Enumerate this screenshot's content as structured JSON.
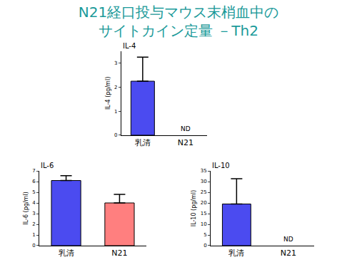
{
  "title": [
    "N21経口投与マウス末梢血中の",
    "サイトカイン定量 －Th2"
  ],
  "chart_data": [
    {
      "type": "bar",
      "title": "IL-4",
      "y_label": "IL-4 (pg/ml)",
      "categories": [
        "乳清",
        "N21"
      ],
      "values": [
        2.25,
        null
      ],
      "errors": [
        1.0,
        null
      ],
      "colors": [
        "#4b4bf0",
        "#ff7f7f"
      ],
      "annotations": [
        {
          "category": "N21",
          "text": "ND"
        }
      ],
      "ylim": [
        0,
        3.5
      ],
      "yticks": [
        0,
        1,
        2,
        3
      ],
      "grid": false
    },
    {
      "type": "bar",
      "title": "IL-6",
      "y_label": "IL-6 (pg/ml)",
      "categories": [
        "乳清",
        "N21"
      ],
      "values": [
        6.1,
        4.0
      ],
      "errors": [
        0.45,
        0.8
      ],
      "colors": [
        "#4b4bf0",
        "#ff7f7f"
      ],
      "ylim": [
        0,
        7
      ],
      "yticks": [
        0,
        1,
        2,
        3,
        4,
        5,
        6,
        7
      ],
      "grid": false
    },
    {
      "type": "bar",
      "title": "IL-10",
      "y_label": "IL-10 (pg/ml)",
      "categories": [
        "乳清",
        "N21"
      ],
      "values": [
        19.5,
        null
      ],
      "errors": [
        11.8,
        null
      ],
      "colors": [
        "#4b4bf0",
        "#ff7f7f"
      ],
      "annotations": [
        {
          "category": "N21",
          "text": "ND"
        }
      ],
      "ylim": [
        0,
        35
      ],
      "yticks": [
        0,
        5,
        10,
        15,
        20,
        25,
        30,
        35
      ],
      "grid": false
    }
  ]
}
